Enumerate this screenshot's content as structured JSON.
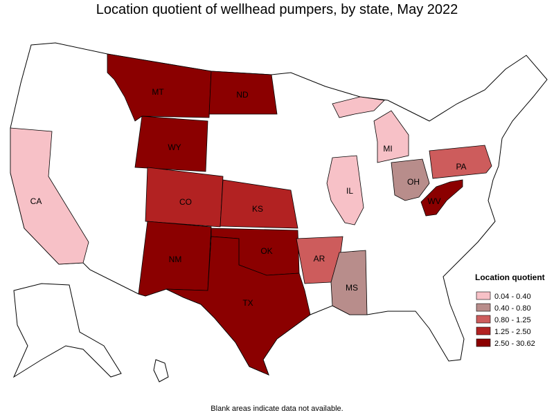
{
  "title": "Location quotient of wellhead pumpers, by state, May 2022",
  "legend": {
    "title": "Location quotient",
    "items": [
      {
        "label": "0.04 - 0.40",
        "color": "#f7c1c7"
      },
      {
        "label": "0.40 - 0.80",
        "color": "#b88d8b"
      },
      {
        "label": "0.80 - 1.25",
        "color": "#cd5c5c"
      },
      {
        "label": "1.25 - 2.50",
        "color": "#b22222"
      },
      {
        "label": "2.50 - 30.62",
        "color": "#8b0000"
      }
    ]
  },
  "states": [
    {
      "label": "MT",
      "color": "#8b0000"
    },
    {
      "label": "ND",
      "color": "#8b0000"
    },
    {
      "label": "WY",
      "color": "#8b0000"
    },
    {
      "label": "CO",
      "color": "#b22222"
    },
    {
      "label": "KS",
      "color": "#b22222"
    },
    {
      "label": "NM",
      "color": "#8b0000"
    },
    {
      "label": "OK",
      "color": "#8b0000"
    },
    {
      "label": "TX",
      "color": "#8b0000"
    },
    {
      "label": "AR",
      "color": "#cd5c5c"
    },
    {
      "label": "MS",
      "color": "#b88d8b"
    },
    {
      "label": "IL",
      "color": "#f7c1c7"
    },
    {
      "label": "MI",
      "color": "#f7c1c7"
    },
    {
      "label": "CA",
      "color": "#f7c1c7"
    },
    {
      "label": "OH",
      "color": "#b88d8b"
    },
    {
      "label": "PA",
      "color": "#cd5c5c"
    },
    {
      "label": "WV",
      "color": "#8b0000"
    }
  ],
  "note": "Blank areas indicate data not available."
}
